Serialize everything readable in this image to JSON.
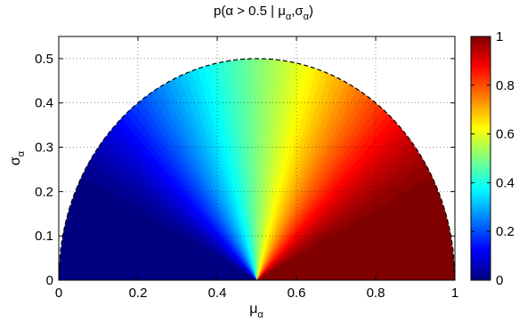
{
  "chart_data": {
    "type": "heatmap",
    "title_parts": [
      "p(α > 0.5 | μ",
      "α",
      ",σ",
      "α",
      ")"
    ],
    "xlabel_parts": [
      "μ",
      "α"
    ],
    "ylabel_parts": [
      "σ",
      "α"
    ],
    "xlim": [
      0,
      1
    ],
    "ylim": [
      0,
      0.55
    ],
    "x_ticks": [
      0,
      0.2,
      0.4,
      0.6,
      0.8,
      1
    ],
    "x_tick_labels": [
      "0",
      "0.2",
      "0.4",
      "0.6",
      "0.8",
      "1"
    ],
    "y_ticks": [
      0,
      0.1,
      0.2,
      0.3,
      0.4,
      0.5
    ],
    "y_tick_labels": [
      "0",
      "0.1",
      "0.2",
      "0.3",
      "0.4",
      "0.5"
    ],
    "grid": true,
    "grid_style": "dotted",
    "domain_boundary": {
      "shape": "semicircle",
      "center_x": 0.5,
      "center_y": 0,
      "radius": 0.5,
      "line_style": "dashed"
    },
    "value_function": "P(alpha > 0.5) for alpha ~ Beta with mean mu_alpha and std sigma_alpha",
    "samples": [
      {
        "mu": 0.5,
        "sigma": 0.3,
        "p": 0.5
      },
      {
        "mu": 0.3,
        "sigma": 0.3,
        "p": 0.25
      },
      {
        "mu": 0.7,
        "sigma": 0.3,
        "p": 0.75
      },
      {
        "mu": 0.2,
        "sigma": 0.1,
        "p": 0.01
      },
      {
        "mu": 0.8,
        "sigma": 0.1,
        "p": 0.99
      }
    ],
    "colorbar": {
      "colormap": "jet",
      "range": [
        0,
        1
      ],
      "ticks": [
        0,
        0.2,
        0.4,
        0.6,
        0.8,
        1
      ],
      "tick_labels": [
        "0",
        "0.2",
        "0.4",
        "0.6",
        "0.8",
        "1"
      ],
      "position": "right"
    }
  }
}
